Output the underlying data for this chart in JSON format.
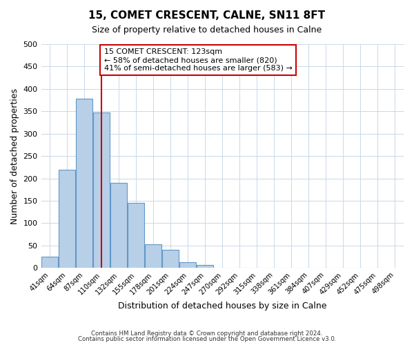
{
  "title": "15, COMET CRESCENT, CALNE, SN11 8FT",
  "subtitle": "Size of property relative to detached houses in Calne",
  "xlabel": "Distribution of detached houses by size in Calne",
  "ylabel": "Number of detached properties",
  "bar_values": [
    25,
    220,
    378,
    348,
    190,
    145,
    53,
    40,
    12,
    6,
    0,
    0,
    0,
    0,
    0,
    0,
    0,
    1,
    0,
    1
  ],
  "bin_labels": [
    "41sqm",
    "64sqm",
    "87sqm",
    "110sqm",
    "132sqm",
    "155sqm",
    "178sqm",
    "201sqm",
    "224sqm",
    "247sqm",
    "270sqm",
    "292sqm",
    "315sqm",
    "338sqm",
    "361sqm",
    "384sqm",
    "407sqm",
    "429sqm",
    "452sqm",
    "475sqm",
    "498sqm"
  ],
  "bar_color": "#b8cfe8",
  "bar_edge_color": "#6098c8",
  "vertical_line_x": 3,
  "annotation_text": "15 COMET CRESCENT: 123sqm\n← 58% of detached houses are smaller (820)\n41% of semi-detached houses are larger (583) →",
  "annotation_box_color": "#ffffff",
  "annotation_box_edge_color": "#cc0000",
  "ylim": [
    0,
    500
  ],
  "yticks": [
    0,
    50,
    100,
    150,
    200,
    250,
    300,
    350,
    400,
    450,
    500
  ],
  "footer_line1": "Contains HM Land Registry data © Crown copyright and database right 2024.",
  "footer_line2": "Contains public sector information licensed under the Open Government Licence v3.0.",
  "background_color": "#ffffff",
  "grid_color": "#c8d8e8"
}
